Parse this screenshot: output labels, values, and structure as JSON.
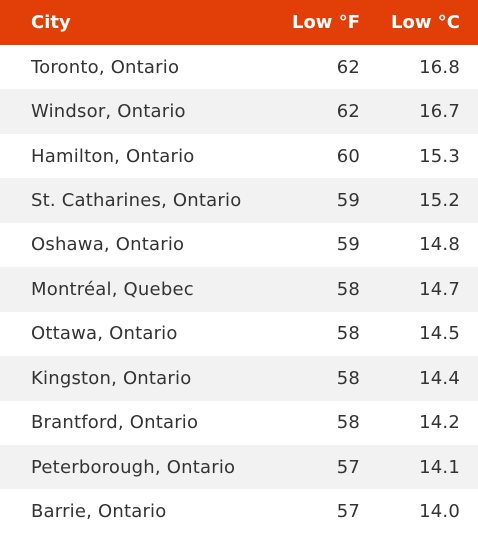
{
  "table": {
    "headers": {
      "city": "City",
      "low_f": "Low °F",
      "low_c": "Low °C"
    },
    "rows": [
      {
        "city": "Toronto, Ontario",
        "low_f": "62",
        "low_c": "16.8"
      },
      {
        "city": "Windsor, Ontario",
        "low_f": "62",
        "low_c": "16.7"
      },
      {
        "city": "Hamilton, Ontario",
        "low_f": "60",
        "low_c": "15.3"
      },
      {
        "city": "St. Catharines, Ontario",
        "low_f": "59",
        "low_c": "15.2"
      },
      {
        "city": "Oshawa, Ontario",
        "low_f": "59",
        "low_c": "14.8"
      },
      {
        "city": "Montréal, Quebec",
        "low_f": "58",
        "low_c": "14.7"
      },
      {
        "city": "Ottawa, Ontario",
        "low_f": "58",
        "low_c": "14.5"
      },
      {
        "city": "Kingston, Ontario",
        "low_f": "58",
        "low_c": "14.4"
      },
      {
        "city": "Brantford, Ontario",
        "low_f": "58",
        "low_c": "14.2"
      },
      {
        "city": "Peterborough, Ontario",
        "low_f": "57",
        "low_c": "14.1"
      },
      {
        "city": "Barrie, Ontario",
        "low_f": "57",
        "low_c": "14.0"
      }
    ]
  },
  "colors": {
    "header_bg": "#e23f08",
    "header_text": "#ffffff",
    "row_alt_bg": "#f2f2f2",
    "row_text": "#333333"
  }
}
